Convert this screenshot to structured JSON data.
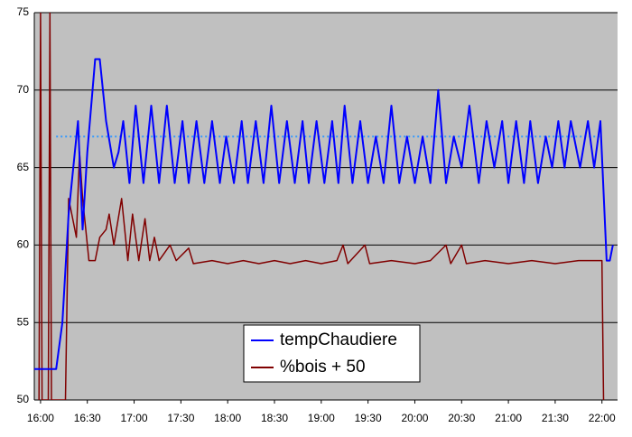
{
  "chart_data": {
    "type": "line",
    "xticks": [
      "16:00",
      "16:30",
      "17:00",
      "17:30",
      "18:00",
      "18:30",
      "19:00",
      "19:30",
      "20:00",
      "20:30",
      "21:00",
      "21:30",
      "22:00"
    ],
    "xlim": [
      "15:56",
      "22:10"
    ],
    "ylim": [
      50,
      75
    ],
    "yticks": [
      50,
      55,
      60,
      65,
      70,
      75
    ],
    "grid": true,
    "series": [
      {
        "name": "tempChaudiere",
        "color": "#0000ff",
        "x": [
          "15:56",
          "16:10",
          "16:14",
          "16:18",
          "16:22",
          "16:24",
          "16:27",
          "16:30",
          "16:35",
          "16:38",
          "16:42",
          "16:47",
          "16:50",
          "16:53",
          "16:57",
          "17:01",
          "17:06",
          "17:11",
          "17:16",
          "17:21",
          "17:26",
          "17:31",
          "17:35",
          "17:40",
          "17:45",
          "17:50",
          "17:55",
          "17:59",
          "18:04",
          "18:09",
          "18:13",
          "18:18",
          "18:23",
          "18:28",
          "18:33",
          "18:38",
          "18:43",
          "18:48",
          "18:52",
          "18:57",
          "19:02",
          "19:07",
          "19:11",
          "19:15",
          "19:20",
          "19:25",
          "19:30",
          "19:35",
          "19:40",
          "19:45",
          "19:50",
          "19:55",
          "20:00",
          "20:05",
          "20:10",
          "20:15",
          "20:20",
          "20:25",
          "20:30",
          "20:35",
          "20:41",
          "20:46",
          "20:51",
          "20:56",
          "21:00",
          "21:05",
          "21:10",
          "21:14",
          "21:19",
          "21:24",
          "21:28",
          "21:32",
          "21:36",
          "21:40",
          "21:46",
          "21:51",
          "21:55",
          "21:59",
          "22:03",
          "22:05",
          "22:07"
        ],
        "values": [
          52,
          52,
          55,
          62,
          66,
          68,
          61,
          66,
          72,
          72,
          68,
          65,
          66,
          68,
          64,
          69,
          64,
          69,
          64,
          69,
          64,
          68,
          64,
          68,
          64,
          68,
          64,
          67,
          64,
          68,
          64,
          68,
          64,
          69,
          64,
          68,
          64,
          68,
          64,
          68,
          64,
          68,
          64,
          69,
          64,
          68,
          64,
          67,
          64,
          69,
          64,
          67,
          64,
          67,
          64,
          70,
          64,
          67,
          65,
          69,
          64,
          68,
          65,
          68,
          64,
          68,
          64,
          68,
          64,
          67,
          65,
          68,
          65,
          68,
          65,
          68,
          65,
          68,
          59,
          59,
          60
        ]
      },
      {
        "name": "%bois + 50",
        "color": "#800000",
        "x": [
          "15:59",
          "16:00",
          "16:01",
          "16:05",
          "16:06",
          "16:07",
          "16:16",
          "16:18",
          "16:20",
          "16:23",
          "16:25",
          "16:27",
          "16:29",
          "16:31",
          "16:35",
          "16:38",
          "16:42",
          "16:44",
          "16:47",
          "16:52",
          "16:56",
          "16:59",
          "17:03",
          "17:07",
          "17:10",
          "17:13",
          "17:16",
          "17:23",
          "17:27",
          "17:35",
          "17:38",
          "17:50",
          "18:00",
          "18:10",
          "18:20",
          "18:30",
          "18:40",
          "18:50",
          "19:00",
          "19:10",
          "19:14",
          "19:17",
          "19:28",
          "19:31",
          "19:45",
          "20:00",
          "20:10",
          "20:20",
          "20:23",
          "20:30",
          "20:33",
          "20:45",
          "21:00",
          "21:15",
          "21:30",
          "21:45",
          "22:00",
          "22:01"
        ],
        "values": [
          50,
          75,
          50,
          50,
          75,
          50,
          50,
          63,
          62,
          60.5,
          66,
          63,
          61,
          59,
          59,
          60.5,
          61,
          62,
          60,
          63,
          59,
          62,
          59,
          61.7,
          59,
          60.5,
          59,
          60,
          59,
          59.8,
          58.8,
          59,
          58.8,
          59,
          58.8,
          59,
          58.8,
          59,
          58.8,
          59,
          60,
          58.8,
          60,
          58.8,
          59,
          58.8,
          59,
          60,
          58.8,
          60,
          58.8,
          59,
          58.8,
          59,
          58.8,
          59,
          59,
          50
        ]
      }
    ],
    "trend_line": {
      "color": "#3399ff",
      "x": [
        "16:10",
        "22:00"
      ],
      "values": [
        67,
        67
      ]
    },
    "legend": "bottom-center"
  }
}
